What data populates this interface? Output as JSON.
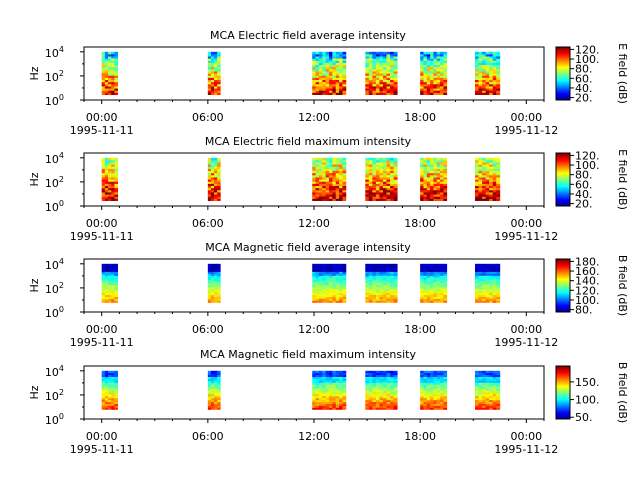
{
  "chart_data": [
    {
      "type": "heatmap",
      "title": "MCA  Electric field average intensity",
      "ylabel": "Hz",
      "y_ticks": [
        "10^0",
        "10^2",
        "10^4"
      ],
      "x_ticks": [
        "00:00",
        "06:00",
        "12:00",
        "18:00",
        "00:00"
      ],
      "x_start_date": "1995-11-11",
      "x_end_date": "1995-11-12",
      "xlim_hours": [
        -1,
        25
      ],
      "ylim_log10": [
        0,
        4.4
      ],
      "colorbar_label": "E field (dB)",
      "colorbar_range": [
        15,
        125
      ],
      "colorbar_ticks": [
        20,
        40,
        60,
        80,
        100,
        120
      ],
      "colorbar_tick_labels": [
        "20.",
        "40.",
        "60.",
        "80.",
        "100.",
        "120."
      ],
      "data_blocks_hours": [
        [
          0.0,
          0.9
        ],
        [
          6.0,
          6.7
        ],
        [
          11.9,
          13.8
        ],
        [
          14.9,
          16.7
        ],
        [
          18.0,
          19.5
        ],
        [
          21.1,
          22.5
        ]
      ]
    },
    {
      "type": "heatmap",
      "title": "MCA  Electric field maximum intensity",
      "ylabel": "Hz",
      "y_ticks": [
        "10^0",
        "10^2",
        "10^4"
      ],
      "x_ticks": [
        "00:00",
        "06:00",
        "12:00",
        "18:00",
        "00:00"
      ],
      "x_start_date": "1995-11-11",
      "x_end_date": "1995-11-12",
      "xlim_hours": [
        -1,
        25
      ],
      "ylim_log10": [
        0,
        4.4
      ],
      "colorbar_label": "E field (dB)",
      "colorbar_range": [
        15,
        125
      ],
      "colorbar_ticks": [
        20,
        40,
        60,
        80,
        100,
        120
      ],
      "colorbar_tick_labels": [
        "20.",
        "40.",
        "60.",
        "80.",
        "100.",
        "120."
      ],
      "data_blocks_hours": [
        [
          0.0,
          0.9
        ],
        [
          6.0,
          6.7
        ],
        [
          11.9,
          13.8
        ],
        [
          14.9,
          16.7
        ],
        [
          18.0,
          19.5
        ],
        [
          21.1,
          22.5
        ]
      ]
    },
    {
      "type": "heatmap",
      "title": "MCA  Magnetic field average intensity",
      "ylabel": "Hz",
      "y_ticks": [
        "10^0",
        "10^2",
        "10^4"
      ],
      "x_ticks": [
        "00:00",
        "06:00",
        "12:00",
        "18:00",
        "00:00"
      ],
      "x_start_date": "1995-11-11",
      "x_end_date": "1995-11-12",
      "xlim_hours": [
        -1,
        25
      ],
      "ylim_log10": [
        0,
        4.4
      ],
      "colorbar_label": "B field (dB)",
      "colorbar_range": [
        75,
        185
      ],
      "colorbar_ticks": [
        80,
        100,
        120,
        140,
        160,
        180
      ],
      "colorbar_tick_labels": [
        "80.",
        "100.",
        "120.",
        "140.",
        "160.",
        "180."
      ],
      "data_blocks_hours": [
        [
          0.0,
          0.9
        ],
        [
          6.0,
          6.7
        ],
        [
          11.9,
          13.8
        ],
        [
          14.9,
          16.7
        ],
        [
          18.0,
          19.5
        ],
        [
          21.1,
          22.5
        ]
      ]
    },
    {
      "type": "heatmap",
      "title": "MCA  Magnetic field maximum intensity",
      "ylabel": "Hz",
      "y_ticks": [
        "10^0",
        "10^2",
        "10^4"
      ],
      "x_ticks": [
        "00:00",
        "06:00",
        "12:00",
        "18:00",
        "00:00"
      ],
      "x_start_date": "1995-11-11",
      "x_end_date": "1995-11-12",
      "xlim_hours": [
        -1,
        25
      ],
      "ylim_log10": [
        0,
        4.4
      ],
      "colorbar_label": "B field (dB)",
      "colorbar_range": [
        45,
        195
      ],
      "colorbar_ticks": [
        50,
        100,
        150
      ],
      "colorbar_tick_labels": [
        "50.",
        "100.",
        "150."
      ],
      "data_blocks_hours": [
        [
          0.0,
          0.9
        ],
        [
          6.0,
          6.7
        ],
        [
          11.9,
          13.8
        ],
        [
          14.9,
          16.7
        ],
        [
          18.0,
          19.5
        ],
        [
          21.1,
          22.5
        ]
      ]
    }
  ]
}
